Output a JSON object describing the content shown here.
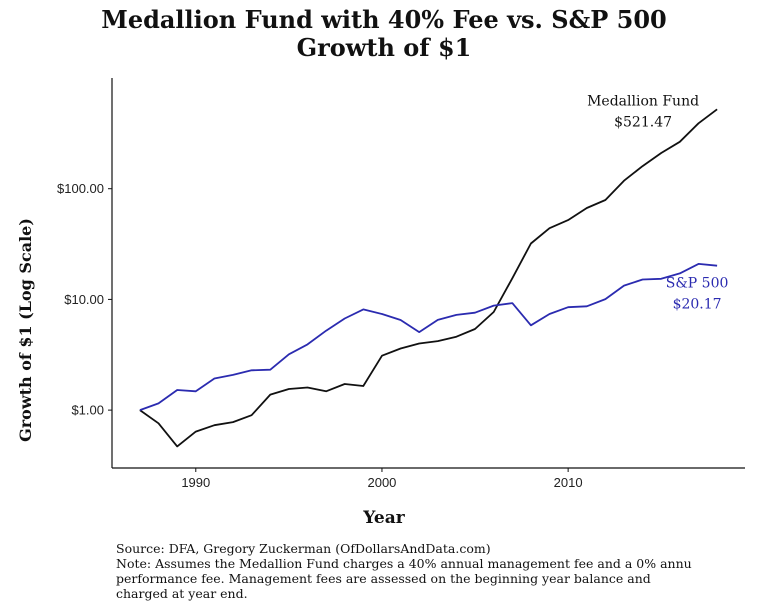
{
  "chart_data": {
    "type": "line",
    "title": "Medallion Fund with 40% Fee vs. S&P 500",
    "subtitle": "Growth of $1",
    "xlabel": "Year",
    "ylabel": "Growth of $1 (Log Scale)",
    "y_scale": "log",
    "xlim": [
      1985.5,
      2019.5
    ],
    "ylim": [
      0.3,
      1000
    ],
    "x_ticks": [
      1990,
      2000,
      2010
    ],
    "x_tick_labels": [
      "1990",
      "2000",
      "2010"
    ],
    "y_ticks": [
      1,
      10,
      100
    ],
    "y_tick_labels": [
      "$1.00",
      "$10.00",
      "$100.00"
    ],
    "grid": false,
    "x": [
      1987,
      1988,
      1989,
      1990,
      1991,
      1992,
      1993,
      1994,
      1995,
      1996,
      1997,
      1998,
      1999,
      2000,
      2001,
      2002,
      2003,
      2004,
      2005,
      2006,
      2007,
      2008,
      2009,
      2010,
      2011,
      2012,
      2013,
      2014,
      2015,
      2016,
      2017,
      2018
    ],
    "series": [
      {
        "name": "Medallion Fund",
        "color": "#111111",
        "values": [
          1.0,
          0.76,
          0.47,
          0.64,
          0.73,
          0.78,
          0.9,
          1.38,
          1.55,
          1.6,
          1.48,
          1.72,
          1.65,
          3.1,
          3.6,
          4.0,
          4.2,
          4.6,
          5.4,
          7.7,
          15.5,
          32,
          44,
          52,
          67,
          79,
          118,
          160,
          210,
          265,
          390,
          521.47
        ]
      },
      {
        "name": "S&P 500",
        "color": "#2b2bb0",
        "values": [
          1.0,
          1.15,
          1.52,
          1.48,
          1.93,
          2.08,
          2.29,
          2.32,
          3.19,
          3.92,
          5.22,
          6.72,
          8.13,
          7.39,
          6.51,
          5.07,
          6.53,
          7.24,
          7.59,
          8.79,
          9.27,
          5.84,
          7.38,
          8.5,
          8.67,
          10.06,
          13.32,
          15.14,
          15.35,
          17.19,
          20.94,
          20.17
        ]
      }
    ],
    "annotations": [
      {
        "series": "Medallion Fund",
        "lines": [
          "Medallion Fund",
          "$521.47"
        ],
        "color": "#111111"
      },
      {
        "series": "S&P 500",
        "lines": [
          "S&P 500",
          "$20.17"
        ],
        "color": "#2b2bb0"
      }
    ]
  },
  "caption": {
    "source": "Source: DFA, Gregory Zuckerman (OfDollarsAndData.com)",
    "note_line1": "Note: Assumes the Medallion Fund charges a 40% annual management fee and a 0% annu",
    "note_line2": "performance fee. Management fees are assessed on the beginning year balance and",
    "note_line3": "charged at year end."
  }
}
